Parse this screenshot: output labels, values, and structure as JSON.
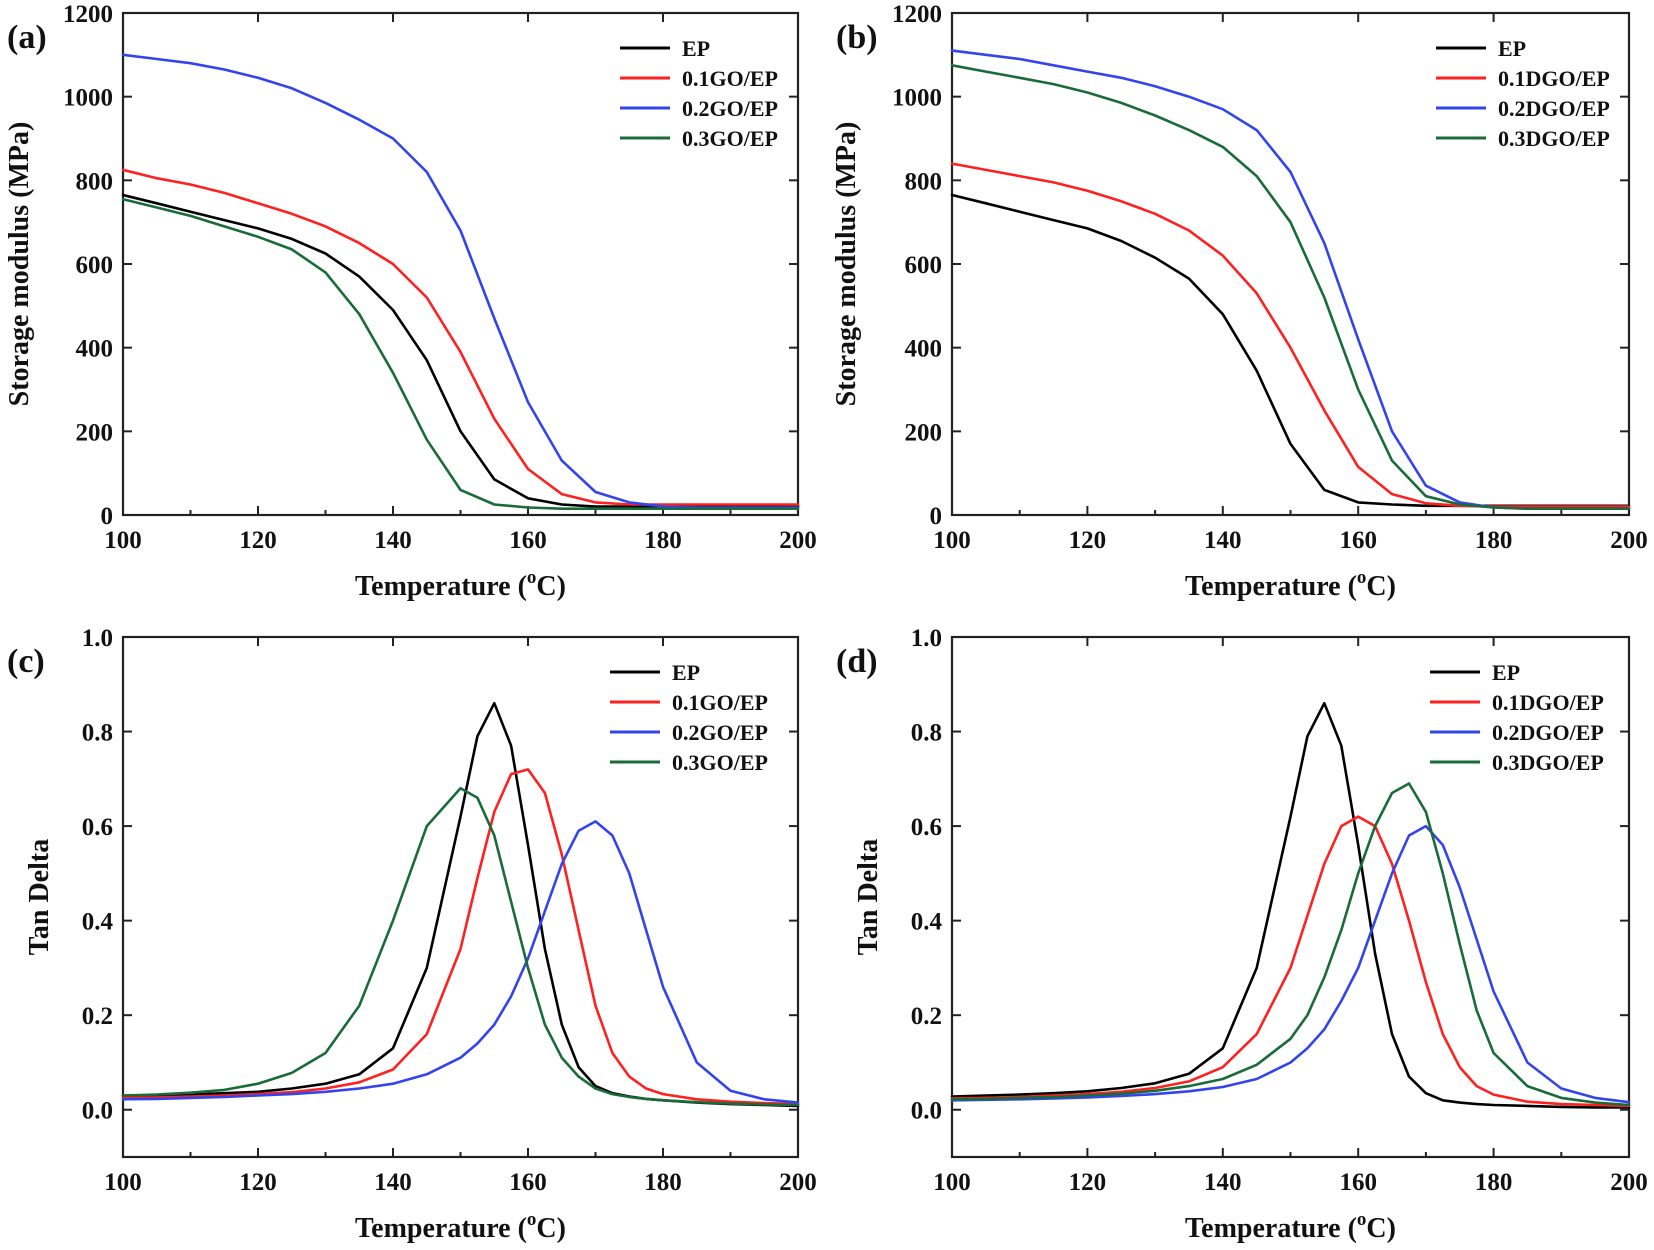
{
  "chart_data": [
    {
      "panel_label": "(a)",
      "type": "line",
      "xlabel_main": "Temperature (",
      "xlabel_sup": "o",
      "xlabel_end": "C)",
      "ylabel": "Storage modulus (MPa)",
      "xlim": [
        100,
        200
      ],
      "ylim": [
        0,
        1200
      ],
      "xticks": [
        100,
        120,
        140,
        160,
        180,
        200
      ],
      "yticks": [
        0,
        200,
        400,
        600,
        800,
        1000,
        1200
      ],
      "x": [
        100,
        105,
        110,
        115,
        120,
        125,
        130,
        135,
        140,
        145,
        150,
        155,
        160,
        165,
        170,
        175,
        180,
        185,
        190,
        195,
        200
      ],
      "series": [
        {
          "name": "EP",
          "color": "#000000",
          "values": [
            765,
            745,
            725,
            705,
            685,
            660,
            625,
            570,
            490,
            370,
            200,
            85,
            40,
            25,
            20,
            20,
            20,
            20,
            20,
            20,
            20
          ]
        },
        {
          "name": "0.1GO/EP",
          "color": "#ff2020",
          "values": [
            825,
            805,
            790,
            770,
            745,
            720,
            690,
            650,
            600,
            520,
            390,
            230,
            110,
            50,
            30,
            25,
            25,
            25,
            25,
            25,
            25
          ]
        },
        {
          "name": "0.2GO/EP",
          "color": "#3344ee",
          "values": [
            1100,
            1090,
            1080,
            1065,
            1045,
            1020,
            985,
            945,
            900,
            820,
            680,
            470,
            270,
            130,
            55,
            30,
            20,
            18,
            18,
            18,
            18
          ]
        },
        {
          "name": "0.3GO/EP",
          "color": "#1a6b3a",
          "values": [
            755,
            735,
            715,
            690,
            665,
            635,
            580,
            480,
            340,
            180,
            60,
            25,
            18,
            15,
            15,
            15,
            15,
            15,
            15,
            15,
            15
          ]
        }
      ]
    },
    {
      "panel_label": "(b)",
      "type": "line",
      "xlabel_main": "Temperature (",
      "xlabel_sup": "o",
      "xlabel_end": "C)",
      "ylabel": "Storage modulus (MPa)",
      "xlim": [
        100,
        200
      ],
      "ylim": [
        0,
        1200
      ],
      "xticks": [
        100,
        120,
        140,
        160,
        180,
        200
      ],
      "yticks": [
        0,
        200,
        400,
        600,
        800,
        1000,
        1200
      ],
      "x": [
        100,
        105,
        110,
        115,
        120,
        125,
        130,
        135,
        140,
        145,
        150,
        155,
        160,
        165,
        170,
        175,
        180,
        185,
        190,
        195,
        200
      ],
      "series": [
        {
          "name": "EP",
          "color": "#000000",
          "values": [
            765,
            745,
            725,
            705,
            685,
            655,
            615,
            565,
            480,
            345,
            170,
            60,
            30,
            25,
            22,
            22,
            22,
            22,
            22,
            22,
            22
          ]
        },
        {
          "name": "0.1DGO/EP",
          "color": "#ff2020",
          "values": [
            840,
            825,
            810,
            795,
            775,
            750,
            720,
            680,
            620,
            530,
            400,
            250,
            115,
            50,
            28,
            22,
            20,
            20,
            20,
            20,
            20
          ]
        },
        {
          "name": "0.2DGO/EP",
          "color": "#3344ee",
          "values": [
            1110,
            1100,
            1090,
            1075,
            1060,
            1045,
            1025,
            1000,
            970,
            920,
            820,
            650,
            420,
            200,
            70,
            30,
            18,
            15,
            15,
            15,
            15
          ]
        },
        {
          "name": "0.3DGO/EP",
          "color": "#1a6b3a",
          "values": [
            1075,
            1060,
            1045,
            1030,
            1010,
            985,
            955,
            920,
            880,
            810,
            700,
            520,
            300,
            130,
            45,
            25,
            18,
            15,
            15,
            15,
            15
          ]
        }
      ]
    },
    {
      "panel_label": "(c)",
      "type": "line",
      "xlabel_main": "Temperature (",
      "xlabel_sup": "o",
      "xlabel_end": "C)",
      "ylabel": "Tan Delta",
      "xlim": [
        100,
        200
      ],
      "ylim": [
        -0.1,
        1.0
      ],
      "xticks": [
        100,
        120,
        140,
        160,
        180,
        200
      ],
      "yticks": [
        0.0,
        0.2,
        0.4,
        0.6,
        0.8,
        1.0
      ],
      "ytick_labels": [
        "0.0",
        "0.2",
        "0.4",
        "0.6",
        "0.8",
        "1.0"
      ],
      "x": [
        100,
        105,
        110,
        115,
        120,
        125,
        130,
        135,
        140,
        145,
        150,
        152.5,
        155,
        157.5,
        160,
        162.5,
        165,
        167.5,
        170,
        172.5,
        175,
        177.5,
        180,
        185,
        190,
        195,
        200
      ],
      "series": [
        {
          "name": "EP",
          "color": "#000000",
          "values": [
            0.03,
            0.03,
            0.032,
            0.035,
            0.038,
            0.045,
            0.055,
            0.075,
            0.13,
            0.3,
            0.62,
            0.79,
            0.86,
            0.77,
            0.56,
            0.34,
            0.18,
            0.09,
            0.05,
            0.035,
            0.028,
            0.023,
            0.02,
            0.015,
            0.012,
            0.01,
            0.008
          ]
        },
        {
          "name": "0.1GO/EP",
          "color": "#ff2020",
          "values": [
            0.025,
            0.026,
            0.028,
            0.03,
            0.033,
            0.037,
            0.045,
            0.058,
            0.085,
            0.16,
            0.34,
            0.49,
            0.63,
            0.71,
            0.72,
            0.67,
            0.54,
            0.38,
            0.22,
            0.12,
            0.07,
            0.045,
            0.033,
            0.022,
            0.017,
            0.014,
            0.012
          ]
        },
        {
          "name": "0.2GO/EP",
          "color": "#3344ee",
          "values": [
            0.022,
            0.023,
            0.025,
            0.027,
            0.03,
            0.033,
            0.038,
            0.045,
            0.055,
            0.075,
            0.11,
            0.14,
            0.18,
            0.24,
            0.32,
            0.42,
            0.52,
            0.59,
            0.61,
            0.58,
            0.5,
            0.38,
            0.26,
            0.1,
            0.04,
            0.022,
            0.015
          ]
        },
        {
          "name": "0.3GO/EP",
          "color": "#1a6b3a",
          "values": [
            0.03,
            0.032,
            0.036,
            0.042,
            0.055,
            0.078,
            0.12,
            0.22,
            0.4,
            0.6,
            0.68,
            0.66,
            0.58,
            0.44,
            0.3,
            0.18,
            0.11,
            0.07,
            0.045,
            0.033,
            0.027,
            0.023,
            0.02,
            0.016,
            0.013,
            0.011,
            0.01
          ]
        }
      ]
    },
    {
      "panel_label": "(d)",
      "type": "line",
      "xlabel_main": "Temperature (",
      "xlabel_sup": "o",
      "xlabel_end": "C)",
      "ylabel": "Tan Delta",
      "xlim": [
        100,
        200
      ],
      "ylim": [
        -0.1,
        1.0
      ],
      "xticks": [
        100,
        120,
        140,
        160,
        180,
        200
      ],
      "yticks": [
        0.0,
        0.2,
        0.4,
        0.6,
        0.8,
        1.0
      ],
      "ytick_labels": [
        "0.0",
        "0.2",
        "0.4",
        "0.6",
        "0.8",
        "1.0"
      ],
      "x": [
        100,
        105,
        110,
        115,
        120,
        125,
        130,
        135,
        140,
        145,
        150,
        152.5,
        155,
        157.5,
        160,
        162.5,
        165,
        167.5,
        170,
        172.5,
        175,
        177.5,
        180,
        185,
        190,
        195,
        200
      ],
      "series": [
        {
          "name": "EP",
          "color": "#000000",
          "values": [
            0.028,
            0.03,
            0.032,
            0.035,
            0.039,
            0.046,
            0.056,
            0.076,
            0.13,
            0.3,
            0.62,
            0.79,
            0.86,
            0.77,
            0.56,
            0.33,
            0.16,
            0.07,
            0.035,
            0.02,
            0.015,
            0.012,
            0.01,
            0.008,
            0.006,
            0.005,
            0.005
          ]
        },
        {
          "name": "0.1DGO/EP",
          "color": "#ff2020",
          "values": [
            0.024,
            0.025,
            0.027,
            0.03,
            0.033,
            0.038,
            0.046,
            0.06,
            0.09,
            0.16,
            0.3,
            0.41,
            0.52,
            0.6,
            0.62,
            0.6,
            0.52,
            0.4,
            0.27,
            0.16,
            0.09,
            0.05,
            0.032,
            0.017,
            0.012,
            0.01,
            0.008
          ]
        },
        {
          "name": "0.2DGO/EP",
          "color": "#3344ee",
          "values": [
            0.02,
            0.021,
            0.022,
            0.024,
            0.026,
            0.029,
            0.033,
            0.039,
            0.048,
            0.065,
            0.1,
            0.13,
            0.17,
            0.23,
            0.3,
            0.4,
            0.5,
            0.58,
            0.6,
            0.56,
            0.47,
            0.36,
            0.25,
            0.1,
            0.045,
            0.025,
            0.016
          ]
        },
        {
          "name": "0.3DGO/EP",
          "color": "#1a6b3a",
          "values": [
            0.022,
            0.023,
            0.025,
            0.027,
            0.03,
            0.034,
            0.04,
            0.05,
            0.065,
            0.095,
            0.15,
            0.2,
            0.28,
            0.38,
            0.5,
            0.6,
            0.67,
            0.69,
            0.63,
            0.5,
            0.35,
            0.21,
            0.12,
            0.05,
            0.025,
            0.015,
            0.01
          ]
        }
      ]
    }
  ]
}
